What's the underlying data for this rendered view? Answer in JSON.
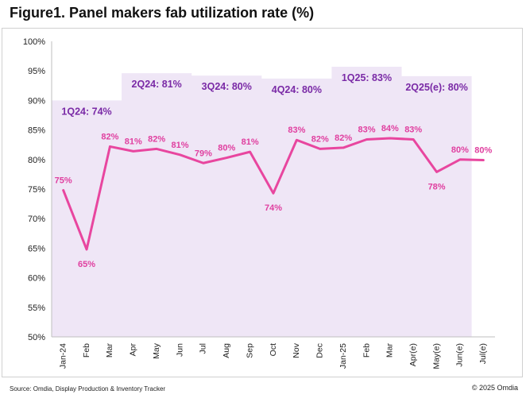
{
  "title": "Figure1. Panel makers fab utilization rate (%)",
  "source": "Source: Omdia, Display Production & Inventory Tracker",
  "copyright": "© 2025 Omdia",
  "chart_data": {
    "type": "line",
    "title": "Figure1. Panel makers fab utilization rate (%)",
    "xlabel": "",
    "ylabel": "",
    "ylim": [
      50,
      100
    ],
    "yticks": [
      50,
      55,
      60,
      65,
      70,
      75,
      80,
      85,
      90,
      95,
      100
    ],
    "ytick_labels": [
      "50%",
      "55%",
      "60%",
      "65%",
      "70%",
      "75%",
      "80%",
      "85%",
      "90%",
      "95%",
      "100%"
    ],
    "grid": false,
    "categories": [
      "Jan-24",
      "Feb",
      "Mar",
      "Apr",
      "May",
      "Jun",
      "Jul",
      "Aug",
      "Sep",
      "Oct",
      "Nov",
      "Dec",
      "Jan-25",
      "Feb",
      "Mar",
      "Apr(e)",
      "May(e)",
      "Jun(e)",
      "Jul(e)"
    ],
    "series": [
      {
        "values": [
          74.8,
          64.8,
          82.2,
          81.4,
          81.8,
          80.8,
          79.4,
          80.3,
          81.3,
          74.3,
          83.3,
          81.8,
          82.0,
          83.4,
          83.6,
          83.4,
          77.9,
          80.0,
          79.9
        ],
        "labels": [
          "75%",
          "65%",
          "82%",
          "81%",
          "82%",
          "81%",
          "79%",
          "80%",
          "81%",
          "74%",
          "83%",
          "82%",
          "82%",
          "83%",
          "84%",
          "83%",
          "78%",
          "80%",
          "80%"
        ],
        "label_pos": [
          "above",
          "below",
          "above",
          "above",
          "above",
          "above",
          "above",
          "above",
          "above",
          "below",
          "above",
          "above",
          "above",
          "above",
          "above",
          "above",
          "below",
          "above",
          "above"
        ],
        "color": "#e8469f"
      }
    ],
    "quarters": [
      {
        "label": "1Q24: 74%",
        "value": 90,
        "start": 0,
        "end": 3
      },
      {
        "label": "2Q24: 81%",
        "value": 94.6,
        "start": 3,
        "end": 6
      },
      {
        "label": "3Q24: 80%",
        "value": 94.2,
        "start": 6,
        "end": 9
      },
      {
        "label": "4Q24: 80%",
        "value": 93.7,
        "start": 9,
        "end": 12
      },
      {
        "label": "1Q25: 83%",
        "value": 95.7,
        "start": 12,
        "end": 15
      },
      {
        "label": "2Q25(e): 80%",
        "value": 94.1,
        "start": 15,
        "end": 18
      }
    ],
    "colors": {
      "line": "#e8469f",
      "data_label": "#e040a0",
      "quarter_fill": "#efe6f6",
      "quarter_label": "#7a2aa6",
      "axis_text": "#222222"
    }
  }
}
